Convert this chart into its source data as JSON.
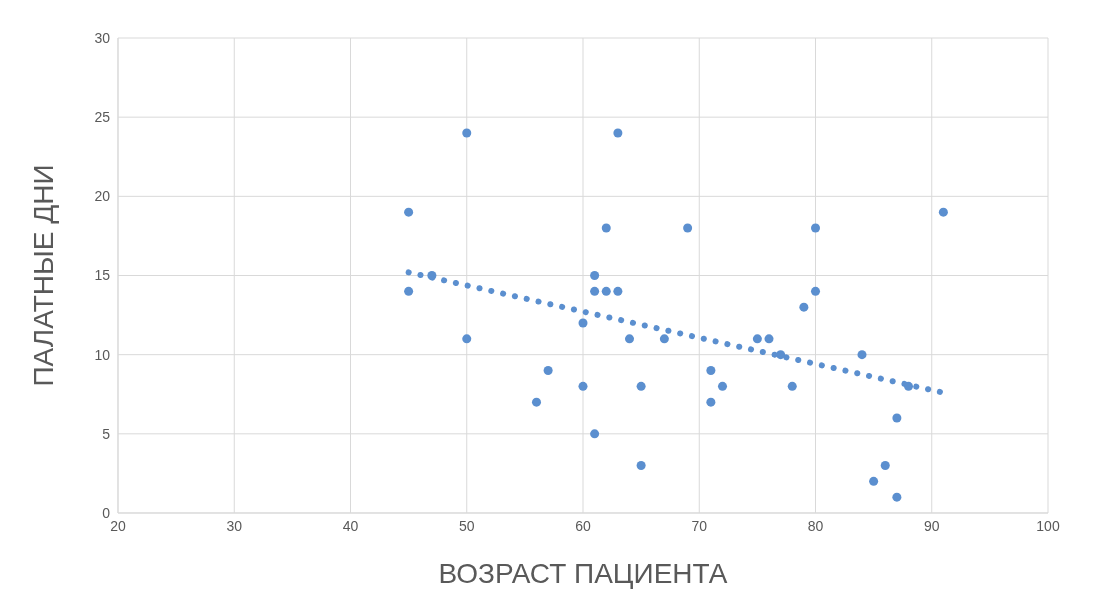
{
  "chart_data": {
    "type": "scatter",
    "xlabel": "ВОЗРАСТ ПАЦИЕНТА",
    "ylabel": "ПАЛАТНЫЕ ДНИ",
    "xlim": [
      20,
      100
    ],
    "xticks": [
      20,
      30,
      40,
      50,
      60,
      70,
      80,
      90,
      100
    ],
    "ylim": [
      0,
      30
    ],
    "yticks": [
      0,
      5,
      10,
      15,
      20,
      25,
      30
    ],
    "grid": true,
    "series": [
      {
        "marker": "circle",
        "color": "#5b8fcf",
        "x": [
          45,
          45,
          47,
          50,
          50,
          56,
          57,
          60,
          60,
          61,
          61,
          61,
          62,
          62,
          63,
          63,
          64,
          65,
          65,
          67,
          69,
          71,
          71,
          72,
          75,
          76,
          77,
          78,
          79,
          80,
          80,
          84,
          85,
          86,
          87,
          87,
          88,
          91
        ],
        "values": [
          19,
          14,
          15,
          24,
          11,
          7,
          9,
          12,
          8,
          15,
          14,
          5,
          18,
          14,
          24,
          14,
          11,
          8,
          3,
          11,
          18,
          9,
          7,
          8,
          11,
          11,
          10,
          8,
          13,
          18,
          14,
          10,
          2,
          3,
          6,
          1,
          8,
          19
        ]
      },
      {
        "type": "line",
        "color": "#5b8fcf",
        "line_style": "dotted",
        "x": [
          45,
          91
        ],
        "values": [
          15.2,
          7.6
        ]
      }
    ]
  }
}
